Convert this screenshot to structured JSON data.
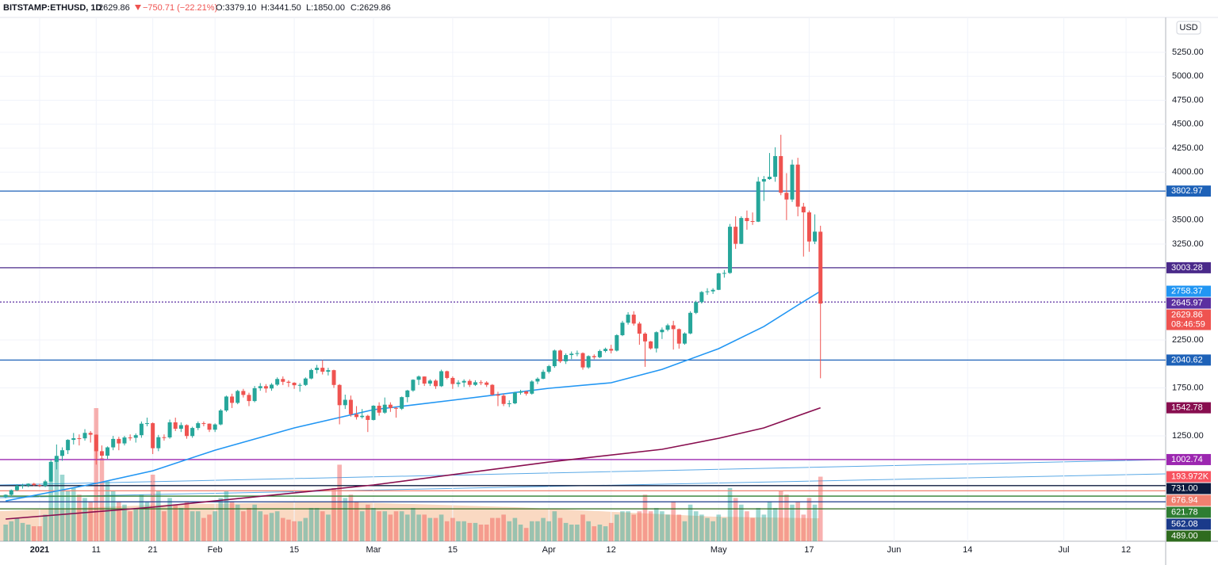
{
  "chart_data": {
    "type": "candlestick",
    "header": {
      "symbol": "BITSTAMP:ETHUSD, 1D",
      "price": "2629.86",
      "change": "−750.71 (−22.21%)",
      "open": "O:3379.10",
      "high": "H:3441.50",
      "low": "L:1850.00",
      "close": "C:2629.86"
    },
    "currency": "USD",
    "countdown": "08:46:59",
    "up_color": "#26a69a",
    "down_color": "#ef5350",
    "grid": true,
    "xlim": [
      "2020-12-25",
      "2021-07-19"
    ],
    "ylim": [
      151,
      5614
    ],
    "yticks": [
      {
        "value": 1250,
        "label": "1250.00"
      },
      {
        "value": 1750,
        "label": "1750.00"
      },
      {
        "value": 2250,
        "label": "2250.00"
      },
      {
        "value": 3250,
        "label": "3250.00"
      },
      {
        "value": 3500,
        "label": "3500.00"
      },
      {
        "value": 4000,
        "label": "4000.00"
      },
      {
        "value": 4250,
        "label": "4250.00"
      },
      {
        "value": 4500,
        "label": "4500.00"
      },
      {
        "value": 4750,
        "label": "4750.00"
      },
      {
        "value": 5000,
        "label": "5000.00"
      },
      {
        "value": 5250,
        "label": "5250.00"
      }
    ],
    "xticks": [
      {
        "value": "2021-01-01",
        "label": "2021"
      },
      {
        "value": "2021-01-11",
        "label": "11"
      },
      {
        "value": "2021-01-21",
        "label": "21"
      },
      {
        "value": "2021-02-01",
        "label": "Feb"
      },
      {
        "value": "2021-02-15",
        "label": "15"
      },
      {
        "value": "2021-03-01",
        "label": "Mar"
      },
      {
        "value": "2021-03-15",
        "label": "15"
      },
      {
        "value": "2021-04-01",
        "label": "Apr"
      },
      {
        "value": "2021-04-12",
        "label": "12"
      },
      {
        "value": "2021-05-01",
        "label": "May"
      },
      {
        "value": "2021-05-17",
        "label": "17"
      },
      {
        "value": "2021-06-01",
        "label": "Jun"
      },
      {
        "value": "2021-06-14",
        "label": "14"
      },
      {
        "value": "2021-07-01",
        "label": "Jul"
      },
      {
        "value": "2021-07-12",
        "label": "12"
      }
    ],
    "x": [
      "2020-12-26",
      "2020-12-27",
      "2020-12-28",
      "2020-12-29",
      "2020-12-30",
      "2020-12-31",
      "2021-01-01",
      "2021-01-02",
      "2021-01-03",
      "2021-01-04",
      "2021-01-05",
      "2021-01-06",
      "2021-01-07",
      "2021-01-08",
      "2021-01-09",
      "2021-01-10",
      "2021-01-11",
      "2021-01-12",
      "2021-01-13",
      "2021-01-14",
      "2021-01-15",
      "2021-01-16",
      "2021-01-17",
      "2021-01-18",
      "2021-01-19",
      "2021-01-20",
      "2021-01-21",
      "2021-01-22",
      "2021-01-23",
      "2021-01-24",
      "2021-01-25",
      "2021-01-26",
      "2021-01-27",
      "2021-01-28",
      "2021-01-29",
      "2021-01-30",
      "2021-01-31",
      "2021-02-01",
      "2021-02-02",
      "2021-02-03",
      "2021-02-04",
      "2021-02-05",
      "2021-02-06",
      "2021-02-07",
      "2021-02-08",
      "2021-02-09",
      "2021-02-10",
      "2021-02-11",
      "2021-02-12",
      "2021-02-13",
      "2021-02-14",
      "2021-02-15",
      "2021-02-16",
      "2021-02-17",
      "2021-02-18",
      "2021-02-19",
      "2021-02-20",
      "2021-02-21",
      "2021-02-22",
      "2021-02-23",
      "2021-02-24",
      "2021-02-25",
      "2021-02-26",
      "2021-02-27",
      "2021-02-28",
      "2021-03-01",
      "2021-03-02",
      "2021-03-03",
      "2021-03-04",
      "2021-03-05",
      "2021-03-06",
      "2021-03-07",
      "2021-03-08",
      "2021-03-09",
      "2021-03-10",
      "2021-03-11",
      "2021-03-12",
      "2021-03-13",
      "2021-03-14",
      "2021-03-15",
      "2021-03-16",
      "2021-03-17",
      "2021-03-18",
      "2021-03-19",
      "2021-03-20",
      "2021-03-21",
      "2021-03-22",
      "2021-03-23",
      "2021-03-24",
      "2021-03-25",
      "2021-03-26",
      "2021-03-27",
      "2021-03-28",
      "2021-03-29",
      "2021-03-30",
      "2021-03-31",
      "2021-04-01",
      "2021-04-02",
      "2021-04-03",
      "2021-04-04",
      "2021-04-05",
      "2021-04-06",
      "2021-04-07",
      "2021-04-08",
      "2021-04-09",
      "2021-04-10",
      "2021-04-11",
      "2021-04-12",
      "2021-04-13",
      "2021-04-14",
      "2021-04-15",
      "2021-04-16",
      "2021-04-17",
      "2021-04-18",
      "2021-04-19",
      "2021-04-20",
      "2021-04-21",
      "2021-04-22",
      "2021-04-23",
      "2021-04-24",
      "2021-04-25",
      "2021-04-26",
      "2021-04-27",
      "2021-04-28",
      "2021-04-29",
      "2021-04-30",
      "2021-05-01",
      "2021-05-02",
      "2021-05-03",
      "2021-05-04",
      "2021-05-05",
      "2021-05-06",
      "2021-05-07",
      "2021-05-08",
      "2021-05-09",
      "2021-05-10",
      "2021-05-11",
      "2021-05-12",
      "2021-05-13",
      "2021-05-14",
      "2021-05-15",
      "2021-05-16",
      "2021-05-17",
      "2021-05-18",
      "2021-05-19"
    ],
    "candles": [
      [
        612,
        640,
        600,
        635
      ],
      [
        635,
        690,
        620,
        683
      ],
      [
        683,
        745,
        675,
        730
      ],
      [
        730,
        750,
        700,
        732
      ],
      [
        732,
        755,
        715,
        751
      ],
      [
        751,
        760,
        725,
        737
      ],
      [
        737,
        750,
        715,
        730
      ],
      [
        730,
        790,
        715,
        775
      ],
      [
        775,
        1000,
        765,
        979
      ],
      [
        979,
        1160,
        900,
        1041
      ],
      [
        1041,
        1130,
        990,
        1100
      ],
      [
        1100,
        1215,
        1060,
        1208
      ],
      [
        1208,
        1280,
        1160,
        1225
      ],
      [
        1225,
        1265,
        1150,
        1224
      ],
      [
        1224,
        1320,
        1200,
        1281
      ],
      [
        1281,
        1300,
        1180,
        1262
      ],
      [
        1262,
        1265,
        950,
        1090
      ],
      [
        1090,
        1150,
        1010,
        1043
      ],
      [
        1043,
        1140,
        1010,
        1130
      ],
      [
        1130,
        1250,
        1100,
        1218
      ],
      [
        1218,
        1240,
        1100,
        1171
      ],
      [
        1171,
        1250,
        1150,
        1233
      ],
      [
        1233,
        1265,
        1200,
        1230
      ],
      [
        1230,
        1275,
        1180,
        1257
      ],
      [
        1257,
        1400,
        1230,
        1377
      ],
      [
        1377,
        1440,
        1350,
        1382
      ],
      [
        1382,
        1390,
        1060,
        1121
      ],
      [
        1121,
        1260,
        1090,
        1236
      ],
      [
        1236,
        1265,
        1200,
        1234
      ],
      [
        1234,
        1420,
        1220,
        1391
      ],
      [
        1391,
        1440,
        1300,
        1324
      ],
      [
        1324,
        1390,
        1290,
        1362
      ],
      [
        1362,
        1370,
        1220,
        1248
      ],
      [
        1248,
        1345,
        1230,
        1332
      ],
      [
        1332,
        1400,
        1310,
        1382
      ],
      [
        1382,
        1400,
        1350,
        1377
      ],
      [
        1377,
        1380,
        1290,
        1314
      ],
      [
        1314,
        1380,
        1290,
        1369
      ],
      [
        1369,
        1530,
        1360,
        1515
      ],
      [
        1515,
        1670,
        1500,
        1660
      ],
      [
        1660,
        1690,
        1540,
        1594
      ],
      [
        1594,
        1730,
        1580,
        1718
      ],
      [
        1718,
        1740,
        1650,
        1677
      ],
      [
        1677,
        1700,
        1560,
        1613
      ],
      [
        1613,
        1770,
        1600,
        1747
      ],
      [
        1747,
        1800,
        1720,
        1768
      ],
      [
        1768,
        1790,
        1700,
        1744
      ],
      [
        1744,
        1800,
        1720,
        1784
      ],
      [
        1784,
        1860,
        1770,
        1843
      ],
      [
        1843,
        1870,
        1780,
        1814
      ],
      [
        1814,
        1830,
        1760,
        1804
      ],
      [
        1804,
        1810,
        1740,
        1778
      ],
      [
        1778,
        1800,
        1710,
        1781
      ],
      [
        1781,
        1860,
        1770,
        1848
      ],
      [
        1848,
        1950,
        1840,
        1937
      ],
      [
        1937,
        1990,
        1900,
        1960
      ],
      [
        1960,
        2040,
        1890,
        1919
      ],
      [
        1919,
        1960,
        1880,
        1935
      ],
      [
        1935,
        1940,
        1750,
        1781
      ],
      [
        1781,
        1790,
        1370,
        1570
      ],
      [
        1570,
        1680,
        1530,
        1626
      ],
      [
        1626,
        1670,
        1450,
        1475
      ],
      [
        1475,
        1560,
        1420,
        1446
      ],
      [
        1446,
        1530,
        1430,
        1459
      ],
      [
        1459,
        1470,
        1290,
        1416
      ],
      [
        1416,
        1570,
        1410,
        1564
      ],
      [
        1564,
        1600,
        1460,
        1492
      ],
      [
        1492,
        1650,
        1480,
        1575
      ],
      [
        1575,
        1600,
        1500,
        1541
      ],
      [
        1541,
        1550,
        1440,
        1533
      ],
      [
        1533,
        1660,
        1520,
        1654
      ],
      [
        1654,
        1730,
        1600,
        1723
      ],
      [
        1723,
        1840,
        1710,
        1835
      ],
      [
        1835,
        1880,
        1780,
        1869
      ],
      [
        1869,
        1870,
        1770,
        1795
      ],
      [
        1795,
        1840,
        1770,
        1826
      ],
      [
        1826,
        1840,
        1740,
        1768
      ],
      [
        1768,
        1940,
        1760,
        1924
      ],
      [
        1924,
        1930,
        1840,
        1854
      ],
      [
        1854,
        1870,
        1740,
        1791
      ],
      [
        1791,
        1830,
        1760,
        1806
      ],
      [
        1806,
        1840,
        1760,
        1823
      ],
      [
        1823,
        1840,
        1760,
        1782
      ],
      [
        1782,
        1830,
        1770,
        1809
      ],
      [
        1809,
        1830,
        1780,
        1806
      ],
      [
        1806,
        1820,
        1760,
        1782
      ],
      [
        1782,
        1790,
        1670,
        1680
      ],
      [
        1680,
        1710,
        1560,
        1669
      ],
      [
        1669,
        1690,
        1560,
        1583
      ],
      [
        1583,
        1620,
        1550,
        1589
      ],
      [
        1589,
        1710,
        1580,
        1700
      ],
      [
        1700,
        1730,
        1680,
        1713
      ],
      [
        1713,
        1720,
        1670,
        1690
      ],
      [
        1690,
        1830,
        1680,
        1817
      ],
      [
        1817,
        1860,
        1790,
        1846
      ],
      [
        1846,
        1940,
        1840,
        1918
      ],
      [
        1918,
        1990,
        1900,
        1977
      ],
      [
        1977,
        2150,
        1960,
        2140
      ],
      [
        2140,
        2150,
        2010,
        2027
      ],
      [
        2027,
        2110,
        2000,
        2093
      ],
      [
        2093,
        2130,
        2050,
        2107
      ],
      [
        2107,
        2140,
        2080,
        2113
      ],
      [
        2113,
        2120,
        1940,
        1964
      ],
      [
        1964,
        2090,
        1950,
        2082
      ],
      [
        2082,
        2100,
        2050,
        2070
      ],
      [
        2070,
        2150,
        2060,
        2135
      ],
      [
        2135,
        2170,
        2120,
        2157
      ],
      [
        2157,
        2200,
        2110,
        2139
      ],
      [
        2139,
        2310,
        2130,
        2300
      ],
      [
        2300,
        2450,
        2290,
        2430
      ],
      [
        2430,
        2540,
        2410,
        2514
      ],
      [
        2514,
        2550,
        2400,
        2421
      ],
      [
        2421,
        2440,
        2200,
        2316
      ],
      [
        2316,
        2330,
        1970,
        2235
      ],
      [
        2235,
        2240,
        2150,
        2162
      ],
      [
        2162,
        2340,
        2120,
        2331
      ],
      [
        2331,
        2380,
        2260,
        2357
      ],
      [
        2357,
        2420,
        2340,
        2403
      ],
      [
        2403,
        2450,
        2150,
        2363
      ],
      [
        2363,
        2370,
        2160,
        2212
      ],
      [
        2212,
        2330,
        2200,
        2318
      ],
      [
        2318,
        2550,
        2310,
        2533
      ],
      [
        2533,
        2660,
        2520,
        2645
      ],
      [
        2645,
        2760,
        2630,
        2750
      ],
      [
        2750,
        2790,
        2720,
        2757
      ],
      [
        2757,
        2790,
        2730,
        2773
      ],
      [
        2773,
        2950,
        2770,
        2945
      ],
      [
        2945,
        2980,
        2900,
        2949
      ],
      [
        2949,
        3460,
        2940,
        3431
      ],
      [
        3431,
        3540,
        3200,
        3253
      ],
      [
        3253,
        3540,
        3250,
        3522
      ],
      [
        3522,
        3600,
        3400,
        3490
      ],
      [
        3490,
        3580,
        3450,
        3484
      ],
      [
        3484,
        3950,
        3480,
        3902
      ],
      [
        3902,
        3960,
        3700,
        3928
      ],
      [
        3928,
        4200,
        3920,
        3952
      ],
      [
        3952,
        4260,
        3900,
        4168
      ],
      [
        4168,
        4390,
        3760,
        3785
      ],
      [
        3785,
        3990,
        3500,
        3715
      ],
      [
        3715,
        4130,
        3690,
        4079
      ],
      [
        4079,
        4150,
        3540,
        3641
      ],
      [
        3641,
        3680,
        3120,
        3581
      ],
      [
        3581,
        3600,
        3170,
        3277
      ],
      [
        3277,
        3560,
        3250,
        3380
      ],
      [
        3379.1,
        3441.5,
        1850,
        2629.86
      ]
    ],
    "volume": {
      "values": [
        50,
        60,
        70,
        55,
        50,
        45,
        45,
        80,
        180,
        250,
        200,
        150,
        160,
        140,
        130,
        120,
        400,
        250,
        180,
        150,
        120,
        110,
        90,
        100,
        140,
        120,
        200,
        150,
        90,
        130,
        110,
        100,
        120,
        90,
        90,
        70,
        80,
        90,
        130,
        150,
        120,
        110,
        90,
        100,
        110,
        90,
        80,
        85,
        90,
        70,
        65,
        60,
        60,
        70,
        100,
        100,
        90,
        80,
        160,
        230,
        130,
        140,
        120,
        90,
        110,
        100,
        90,
        90,
        80,
        90,
        90,
        80,
        100,
        80,
        80,
        70,
        70,
        80,
        60,
        70,
        60,
        60,
        55,
        55,
        50,
        50,
        70,
        70,
        80,
        60,
        70,
        50,
        40,
        60,
        60,
        70,
        60,
        90,
        70,
        55,
        50,
        50,
        80,
        60,
        45,
        50,
        45,
        55,
        80,
        90,
        90,
        80,
        90,
        140,
        90,
        100,
        90,
        80,
        120,
        80,
        60,
        110,
        90,
        80,
        70,
        60,
        80,
        70,
        160,
        130,
        110,
        90,
        70,
        100,
        80,
        120,
        100,
        150,
        140,
        110,
        120,
        80,
        130,
        110,
        193.972
      ],
      "last_label": "193.972K",
      "label_color": "#f7525f"
    },
    "lines": [
      {
        "color": "#2196f3",
        "x": [
          "2020-12-26",
          "2021-01-11",
          "2021-01-21",
          "2021-02-01",
          "2021-02-15",
          "2021-03-01",
          "2021-03-15",
          "2021-04-01",
          "2021-04-12",
          "2021-04-21",
          "2021-05-01",
          "2021-05-09",
          "2021-05-15",
          "2021-05-19"
        ],
        "values": [
          572,
          754,
          886,
          1101,
          1333,
          1523,
          1622,
          1746,
          1804,
          1944,
          2159,
          2390,
          2614,
          2758.37
        ]
      },
      {
        "color": "#880e4f",
        "x": [
          "2020-12-26",
          "2021-01-21",
          "2021-03-01",
          "2021-04-01",
          "2021-04-21",
          "2021-05-01",
          "2021-05-09",
          "2021-05-19"
        ],
        "values": [
          382,
          506,
          738,
          977,
          1110,
          1225,
          1333,
          1542.78
        ]
      }
    ],
    "levels": [
      {
        "value": 3802.97,
        "label": "3802.97",
        "color": "#1e62b8"
      },
      {
        "value": 3003.28,
        "label": "3003.28",
        "color": "#4a2a8a"
      },
      {
        "value": 2645.97,
        "label": "2645.97",
        "color": "#5b2fa0"
      },
      {
        "value": 2040.62,
        "label": "2040.62",
        "color": "#1e62b8"
      },
      {
        "value": 1002.74,
        "label": "1002.74",
        "color": "#9c27b0"
      },
      {
        "value": 731,
        "label": "731.00",
        "color": "#0d1b3e"
      },
      {
        "value": 676.94,
        "label": "676.94",
        "color": "#f08070"
      },
      {
        "value": 621.78,
        "label": "621.78",
        "color": "#2e7d32"
      },
      {
        "value": 562.08,
        "label": "562.08",
        "color": "#1a3a8a"
      },
      {
        "value": 489,
        "label": "489.00",
        "color": "#2e6b1e"
      }
    ]
  }
}
